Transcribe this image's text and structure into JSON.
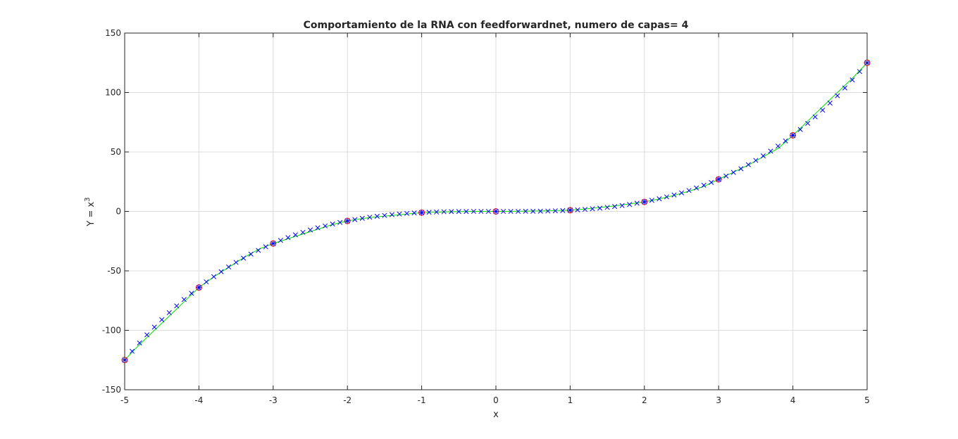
{
  "chart_data": {
    "type": "line",
    "title": "Comportamiento de la RNA con feedforwardnet, numero de capas= 4",
    "xlabel": "x",
    "ylabel_prefix": "Y = x",
    "ylabel_exp": "3",
    "xlim": [
      -5,
      5
    ],
    "ylim": [
      -150,
      150
    ],
    "xticks": [
      "-5",
      "-4",
      "-3",
      "-2",
      "-1",
      "0",
      "1",
      "2",
      "3",
      "4",
      "5"
    ],
    "yticks": [
      "150",
      "100",
      "50",
      "0",
      "-50",
      "-100",
      "-150"
    ],
    "grid": true,
    "series": [
      {
        "kind": "training-points",
        "marker": "circle",
        "color": "#ff0000",
        "x": [
          -5,
          -4,
          -3,
          -2,
          -1,
          0,
          1,
          2,
          3,
          4,
          5
        ],
        "y": [
          -125,
          -64,
          -27,
          -8,
          -1,
          0,
          1,
          8,
          27,
          64,
          125
        ]
      },
      {
        "kind": "training-points",
        "marker": "plus",
        "color": "#0000ff",
        "x": [
          -5,
          -4,
          -3,
          -2,
          -1,
          0,
          1,
          2,
          3,
          4,
          5
        ],
        "y": [
          -125,
          -64,
          -27,
          -8,
          -1,
          0,
          1,
          8,
          27,
          64,
          125
        ]
      },
      {
        "kind": "network-output",
        "marker": "none",
        "color": "#00dd00",
        "x": [
          -5,
          -4.8,
          -4.6,
          -4.4,
          -4.2,
          -4,
          -3.8,
          -3.6,
          -3.4,
          -3.2,
          -3,
          -2.8,
          -2.6,
          -2.4,
          -2.2,
          -2,
          -1.8,
          -1.6,
          -1.4,
          -1.2,
          -1,
          -0.8,
          -0.6,
          -0.4,
          -0.2,
          0,
          0.2,
          0.4,
          0.6,
          0.8,
          1,
          1.2,
          1.4,
          1.6,
          1.8,
          2,
          2.2,
          2.4,
          2.6,
          2.8,
          3,
          3.2,
          3.4,
          3.6,
          3.8,
          4,
          4.2,
          4.4,
          4.6,
          4.8,
          5
        ],
        "y": [
          -125,
          -112,
          -100,
          -88,
          -76,
          -64,
          -55,
          -47,
          -39,
          -32,
          -27,
          -23,
          -19,
          -15,
          -11,
          -8,
          -6,
          -4.5,
          -3.4,
          -2.2,
          -1,
          -0.6,
          -0.3,
          -0.1,
          0,
          0,
          0.1,
          0.2,
          0.4,
          0.7,
          1,
          2,
          3.3,
          4.6,
          6.3,
          8,
          10.5,
          13.5,
          17,
          21,
          27,
          33,
          39,
          46,
          53,
          64,
          76,
          88,
          100,
          112,
          125
        ]
      },
      {
        "kind": "test-points",
        "marker": "x",
        "color": "#0000ff",
        "x": [
          -5,
          -4.9,
          -4.8,
          -4.7,
          -4.6,
          -4.5,
          -4.4,
          -4.3,
          -4.2,
          -4.1,
          -4,
          -3.9,
          -3.8,
          -3.7,
          -3.6,
          -3.5,
          -3.4,
          -3.3,
          -3.2,
          -3.1,
          -3,
          -2.9,
          -2.8,
          -2.7,
          -2.6,
          -2.5,
          -2.4,
          -2.3,
          -2.2,
          -2.1,
          -2,
          -1.9,
          -1.8,
          -1.7,
          -1.6,
          -1.5,
          -1.4,
          -1.3,
          -1.2,
          -1.1,
          -1,
          -0.9,
          -0.8,
          -0.7,
          -0.6,
          -0.5,
          -0.4,
          -0.3,
          -0.2,
          -0.1,
          0,
          0.1,
          0.2,
          0.3,
          0.4,
          0.5,
          0.6,
          0.7,
          0.8,
          0.9,
          1,
          1.1,
          1.2,
          1.3,
          1.4,
          1.5,
          1.6,
          1.7,
          1.8,
          1.9,
          2,
          2.1,
          2.2,
          2.3,
          2.4,
          2.5,
          2.6,
          2.7,
          2.8,
          2.9,
          3,
          3.1,
          3.2,
          3.3,
          3.4,
          3.5,
          3.6,
          3.7,
          3.8,
          3.9,
          4,
          4.1,
          4.2,
          4.3,
          4.4,
          4.5,
          4.6,
          4.7,
          4.8,
          4.9,
          5
        ],
        "y": [
          -125,
          -117.6,
          -110.6,
          -103.8,
          -97.3,
          -91.1,
          -85.2,
          -79.5,
          -74.1,
          -68.9,
          -64,
          -59.3,
          -54.9,
          -50.7,
          -46.7,
          -42.9,
          -39.3,
          -35.9,
          -32.8,
          -29.8,
          -27,
          -24.4,
          -22,
          -19.7,
          -17.6,
          -15.6,
          -13.8,
          -12.2,
          -10.6,
          -9.3,
          -8,
          -6.9,
          -5.8,
          -4.9,
          -4.1,
          -3.4,
          -2.7,
          -2.2,
          -1.7,
          -1.3,
          -1,
          -0.7,
          -0.5,
          -0.3,
          -0.2,
          -0.1,
          -0.1,
          0,
          0,
          0,
          0,
          0,
          0,
          0,
          0.1,
          0.1,
          0.2,
          0.3,
          0.5,
          0.7,
          1,
          1.3,
          1.7,
          2.2,
          2.7,
          3.4,
          4.1,
          4.9,
          5.8,
          6.9,
          8,
          9.3,
          10.6,
          12.2,
          13.8,
          15.6,
          17.6,
          19.7,
          22,
          24.4,
          27,
          29.8,
          32.8,
          35.9,
          39.3,
          42.9,
          46.7,
          50.7,
          54.9,
          59.3,
          64,
          68.9,
          74.1,
          79.5,
          85.2,
          91.1,
          97.3,
          103.8,
          110.6,
          117.6,
          125
        ]
      }
    ]
  }
}
